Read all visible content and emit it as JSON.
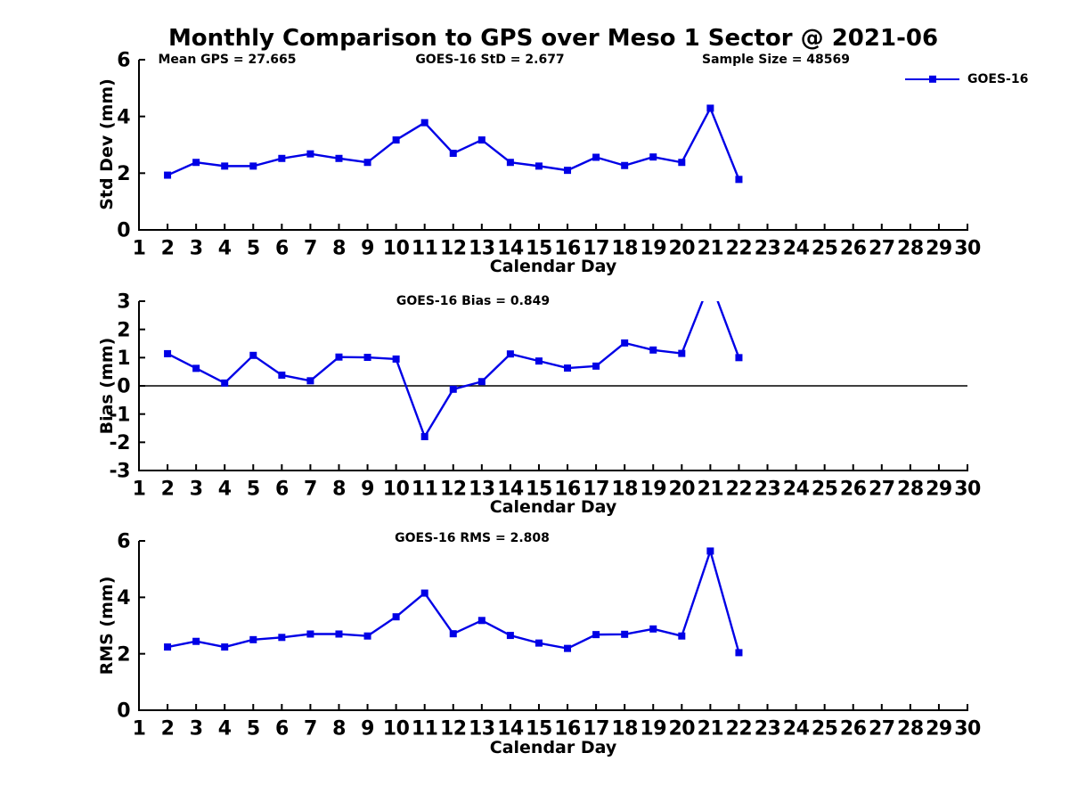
{
  "title": "Monthly Comparison to GPS over Meso 1 Sector @ 2021-06",
  "legend": {
    "label": "GOES-16"
  },
  "style": {
    "line_color": "#0000e6",
    "axis_color": "#000000",
    "background": "#ffffff",
    "text_color": "#000000"
  },
  "x_ticks": [
    1,
    2,
    3,
    4,
    5,
    6,
    7,
    8,
    9,
    10,
    11,
    12,
    13,
    14,
    15,
    16,
    17,
    18,
    19,
    20,
    21,
    22,
    23,
    24,
    25,
    26,
    27,
    28,
    29,
    30
  ],
  "chart_data": [
    {
      "type": "line",
      "series_name": "GOES-16",
      "annotations": [
        "Mean GPS = 27.665",
        "GOES-16 StD = 2.677",
        "Sample Size = 48569"
      ],
      "xlabel": "Calendar Day",
      "ylabel": "Std Dev (mm)",
      "xlim": [
        1,
        30
      ],
      "ylim": [
        0,
        6
      ],
      "yticks": [
        0,
        2,
        4,
        6
      ],
      "zero_line": false,
      "x": [
        2,
        3,
        4,
        5,
        6,
        7,
        8,
        9,
        10,
        11,
        12,
        13,
        14,
        15,
        16,
        17,
        18,
        19,
        20,
        21,
        22
      ],
      "y": [
        1.93,
        2.38,
        2.25,
        2.25,
        2.52,
        2.68,
        2.52,
        2.38,
        3.17,
        3.78,
        2.7,
        3.17,
        2.38,
        2.25,
        2.1,
        2.56,
        2.27,
        2.57,
        2.38,
        4.29,
        1.78
      ]
    },
    {
      "type": "line",
      "series_name": "GOES-16",
      "annotations": [
        "GOES-16 Bias = 0.849"
      ],
      "xlabel": "Calendar Day",
      "ylabel": "Bias (mm)",
      "xlim": [
        1,
        30
      ],
      "ylim": [
        -3,
        3
      ],
      "yticks": [
        -3,
        -2,
        -1,
        0,
        1,
        2,
        3
      ],
      "zero_line": true,
      "x": [
        2,
        3,
        4,
        5,
        6,
        7,
        8,
        9,
        10,
        11,
        12,
        13,
        14,
        15,
        16,
        17,
        18,
        19,
        20,
        21,
        22
      ],
      "y": [
        1.14,
        0.62,
        0.1,
        1.08,
        0.38,
        0.18,
        1.02,
        1.01,
        0.95,
        -1.8,
        -0.12,
        0.15,
        1.13,
        0.88,
        0.63,
        0.7,
        1.52,
        1.27,
        1.15,
        3.7,
        1.0
      ]
    },
    {
      "type": "line",
      "series_name": "GOES-16",
      "annotations": [
        "GOES-16 RMS = 2.808"
      ],
      "xlabel": "Calendar Day",
      "ylabel": "RMS (mm)",
      "xlim": [
        1,
        30
      ],
      "ylim": [
        0,
        6
      ],
      "yticks": [
        0,
        2,
        4,
        6
      ],
      "zero_line": false,
      "x": [
        2,
        3,
        4,
        5,
        6,
        7,
        8,
        9,
        10,
        11,
        12,
        13,
        14,
        15,
        16,
        17,
        18,
        19,
        20,
        21,
        22
      ],
      "y": [
        2.24,
        2.44,
        2.24,
        2.5,
        2.58,
        2.7,
        2.7,
        2.63,
        3.31,
        4.15,
        2.71,
        3.18,
        2.65,
        2.38,
        2.19,
        2.68,
        2.69,
        2.88,
        2.63,
        5.64,
        2.04
      ]
    }
  ]
}
